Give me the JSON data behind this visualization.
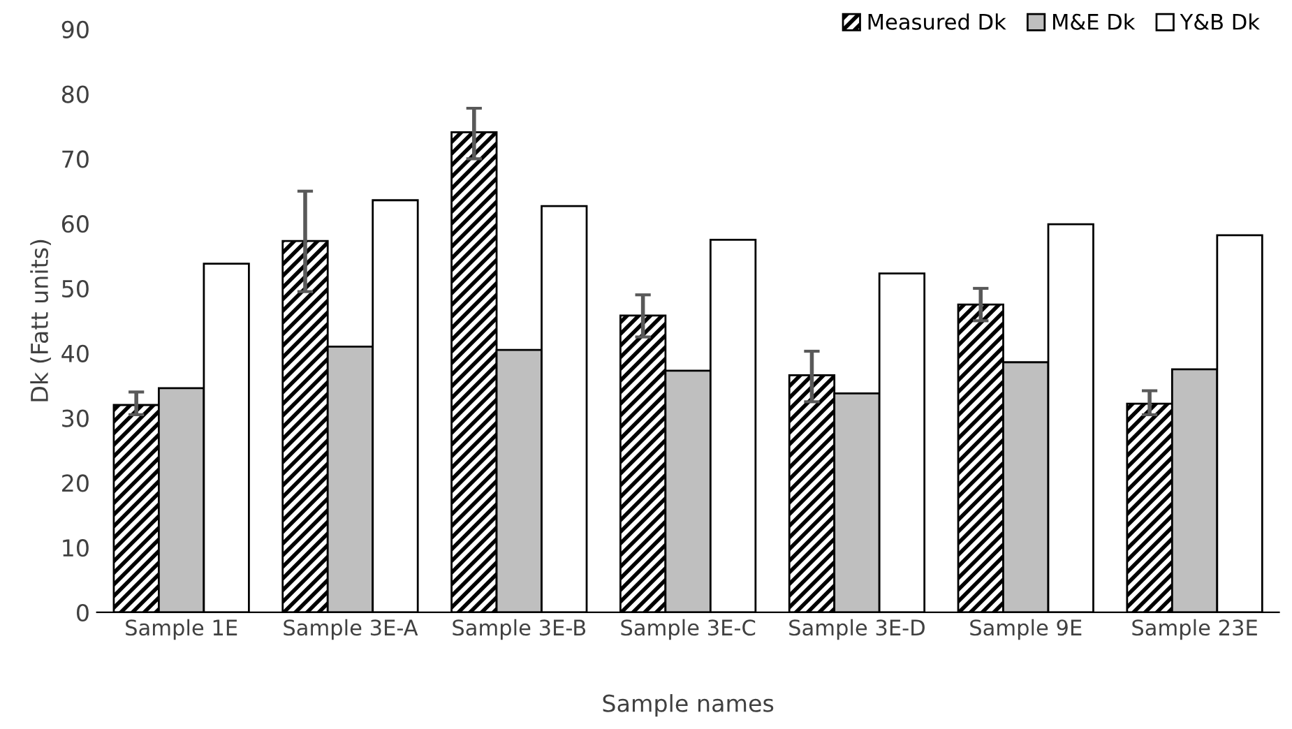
{
  "chart_data": {
    "type": "bar",
    "xlabel": "Sample names",
    "ylabel": "Dk (Fatt units)",
    "categories": [
      "Sample 1E",
      "Sample 3E-A",
      "Sample 3E-B",
      "Sample 3E-C",
      "Sample 3E-D",
      "Sample 9E",
      "Sample 23E"
    ],
    "series": [
      {
        "name": "Measured Dk",
        "color": "#000000",
        "values": [
          32.0,
          57.3,
          74.1,
          45.8,
          36.6,
          47.5,
          32.2
        ],
        "errors": [
          [
            30.5,
            34.0
          ],
          [
            49.5,
            65.0
          ],
          [
            70.0,
            77.8
          ],
          [
            42.5,
            49.0
          ],
          [
            32.5,
            40.3
          ],
          [
            45.0,
            50.0
          ],
          [
            30.5,
            34.2
          ]
        ]
      },
      {
        "name": "M&E Dk",
        "color": "#bfbfbf",
        "values": [
          34.6,
          41.0,
          40.5,
          37.3,
          33.8,
          38.6,
          37.5
        ]
      },
      {
        "name": "Y&B Dk",
        "color": "#ffffff",
        "values": [
          53.8,
          63.6,
          62.7,
          57.5,
          52.3,
          59.9,
          58.2
        ]
      }
    ],
    "ylim": [
      0,
      90
    ],
    "yticks": [
      0,
      10,
      20,
      30,
      40,
      50,
      60,
      70,
      80,
      90
    ],
    "grid": false,
    "legend": "top right"
  }
}
